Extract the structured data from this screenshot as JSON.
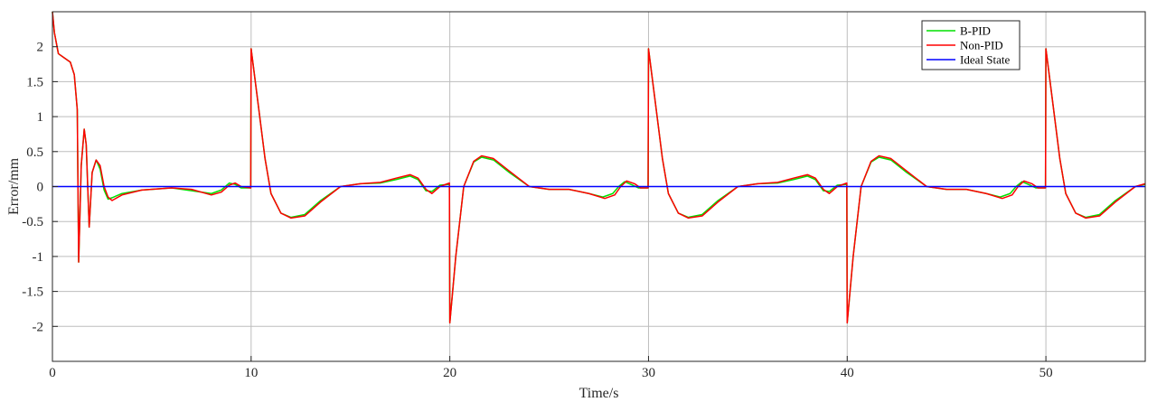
{
  "chart_data": {
    "type": "line",
    "title": "",
    "xlabel": "Time/s",
    "ylabel": "Error/mm",
    "xlim": [
      0,
      55
    ],
    "ylim": [
      -2.5,
      2.5
    ],
    "xticks": [
      0,
      10,
      20,
      30,
      40,
      50
    ],
    "yticks": [
      2,
      1.5,
      1,
      0.5,
      0,
      -0.5,
      -1,
      -1.5,
      -2
    ],
    "ytick_labels": [
      "2",
      "1.5",
      "1",
      "0.5",
      "0",
      "-0.5",
      "-1",
      "-1.5",
      "-2"
    ],
    "grid": true,
    "legend_position": "top-right",
    "series": [
      {
        "name": "B-PID",
        "color": "#00e000",
        "points": [
          [
            0,
            2.5
          ],
          [
            0.1,
            2.2
          ],
          [
            0.3,
            1.9
          ],
          [
            0.6,
            1.84
          ],
          [
            0.9,
            1.78
          ],
          [
            1.1,
            1.6
          ],
          [
            1.25,
            1.1
          ],
          [
            1.32,
            -1.08
          ],
          [
            1.45,
            0.3
          ],
          [
            1.6,
            0.82
          ],
          [
            1.7,
            0.6
          ],
          [
            1.85,
            -0.58
          ],
          [
            2.0,
            0.2
          ],
          [
            2.2,
            0.38
          ],
          [
            2.4,
            0.25
          ],
          [
            2.6,
            -0.05
          ],
          [
            2.8,
            -0.18
          ],
          [
            3.0,
            -0.16
          ],
          [
            3.5,
            -0.1
          ],
          [
            4.5,
            -0.05
          ],
          [
            6.0,
            -0.02
          ],
          [
            7.0,
            -0.06
          ],
          [
            8.0,
            -0.1
          ],
          [
            8.5,
            -0.05
          ],
          [
            8.9,
            0.05
          ],
          [
            9.2,
            0.03
          ],
          [
            9.5,
            -0.02
          ],
          [
            9.98,
            -0.02
          ],
          [
            10.0,
            1.97
          ],
          [
            10.3,
            1.3
          ],
          [
            10.7,
            0.4
          ],
          [
            11.0,
            -0.1
          ],
          [
            11.5,
            -0.38
          ],
          [
            12.0,
            -0.44
          ],
          [
            12.7,
            -0.4
          ],
          [
            13.5,
            -0.2
          ],
          [
            14.5,
            0.0
          ],
          [
            15.5,
            0.04
          ],
          [
            16.5,
            0.05
          ],
          [
            17.3,
            0.1
          ],
          [
            18.0,
            0.15
          ],
          [
            18.4,
            0.1
          ],
          [
            18.8,
            -0.06
          ],
          [
            19.1,
            -0.07
          ],
          [
            19.5,
            0.02
          ],
          [
            19.98,
            0.03
          ],
          [
            20.0,
            -1.95
          ],
          [
            20.3,
            -1.0
          ],
          [
            20.7,
            0.0
          ],
          [
            21.2,
            0.35
          ],
          [
            21.6,
            0.42
          ],
          [
            22.2,
            0.38
          ],
          [
            23.0,
            0.2
          ],
          [
            24.0,
            0.0
          ],
          [
            25.0,
            -0.04
          ],
          [
            26.0,
            -0.04
          ],
          [
            27.0,
            -0.1
          ],
          [
            27.7,
            -0.15
          ],
          [
            28.2,
            -0.1
          ],
          [
            28.5,
            0.0
          ],
          [
            28.8,
            0.07
          ],
          [
            29.2,
            0.02
          ],
          [
            29.5,
            -0.02
          ],
          [
            29.98,
            -0.02
          ],
          [
            30.0,
            1.97
          ],
          [
            30.3,
            1.3
          ],
          [
            30.7,
            0.4
          ],
          [
            31.0,
            -0.1
          ],
          [
            31.5,
            -0.38
          ],
          [
            32.0,
            -0.44
          ],
          [
            32.7,
            -0.4
          ],
          [
            33.5,
            -0.2
          ],
          [
            34.5,
            0.0
          ],
          [
            35.5,
            0.04
          ],
          [
            36.5,
            0.05
          ],
          [
            37.3,
            0.1
          ],
          [
            38.0,
            0.15
          ],
          [
            38.4,
            0.1
          ],
          [
            38.8,
            -0.06
          ],
          [
            39.1,
            -0.07
          ],
          [
            39.5,
            0.02
          ],
          [
            39.98,
            0.03
          ],
          [
            40.0,
            -1.95
          ],
          [
            40.3,
            -1.0
          ],
          [
            40.7,
            0.0
          ],
          [
            41.2,
            0.35
          ],
          [
            41.6,
            0.42
          ],
          [
            42.2,
            0.38
          ],
          [
            43.0,
            0.2
          ],
          [
            44.0,
            0.0
          ],
          [
            45.0,
            -0.04
          ],
          [
            46.0,
            -0.04
          ],
          [
            47.0,
            -0.1
          ],
          [
            47.7,
            -0.15
          ],
          [
            48.2,
            -0.1
          ],
          [
            48.5,
            0.0
          ],
          [
            48.8,
            0.07
          ],
          [
            49.2,
            0.02
          ],
          [
            49.5,
            -0.02
          ],
          [
            49.98,
            -0.02
          ],
          [
            50.0,
            1.97
          ],
          [
            50.3,
            1.3
          ],
          [
            50.7,
            0.4
          ],
          [
            51.0,
            -0.1
          ],
          [
            51.5,
            -0.38
          ],
          [
            52.0,
            -0.44
          ],
          [
            52.7,
            -0.4
          ],
          [
            53.5,
            -0.2
          ],
          [
            54.5,
            0.0
          ],
          [
            55.0,
            0.03
          ]
        ]
      },
      {
        "name": "Non-PID",
        "color": "#ff0000",
        "points": [
          [
            0,
            2.5
          ],
          [
            0.1,
            2.2
          ],
          [
            0.3,
            1.9
          ],
          [
            0.6,
            1.84
          ],
          [
            0.9,
            1.78
          ],
          [
            1.1,
            1.6
          ],
          [
            1.25,
            1.1
          ],
          [
            1.32,
            -1.08
          ],
          [
            1.45,
            0.3
          ],
          [
            1.6,
            0.82
          ],
          [
            1.7,
            0.6
          ],
          [
            1.85,
            -0.58
          ],
          [
            2.0,
            0.2
          ],
          [
            2.2,
            0.38
          ],
          [
            2.4,
            0.3
          ],
          [
            2.6,
            0.0
          ],
          [
            2.8,
            -0.15
          ],
          [
            3.0,
            -0.2
          ],
          [
            3.5,
            -0.12
          ],
          [
            4.5,
            -0.05
          ],
          [
            6.0,
            -0.02
          ],
          [
            7.0,
            -0.04
          ],
          [
            8.0,
            -0.12
          ],
          [
            8.5,
            -0.08
          ],
          [
            8.9,
            0.02
          ],
          [
            9.2,
            0.05
          ],
          [
            9.5,
            0.0
          ],
          [
            9.98,
            -0.02
          ],
          [
            10.0,
            1.97
          ],
          [
            10.3,
            1.3
          ],
          [
            10.7,
            0.4
          ],
          [
            11.0,
            -0.1
          ],
          [
            11.5,
            -0.38
          ],
          [
            12.0,
            -0.45
          ],
          [
            12.7,
            -0.42
          ],
          [
            13.5,
            -0.22
          ],
          [
            14.5,
            0.0
          ],
          [
            15.5,
            0.04
          ],
          [
            16.5,
            0.06
          ],
          [
            17.3,
            0.12
          ],
          [
            18.0,
            0.17
          ],
          [
            18.4,
            0.12
          ],
          [
            18.8,
            -0.04
          ],
          [
            19.1,
            -0.1
          ],
          [
            19.5,
            0.0
          ],
          [
            19.98,
            0.05
          ],
          [
            20.0,
            -1.95
          ],
          [
            20.3,
            -1.0
          ],
          [
            20.7,
            0.0
          ],
          [
            21.2,
            0.36
          ],
          [
            21.6,
            0.44
          ],
          [
            22.2,
            0.4
          ],
          [
            23.0,
            0.22
          ],
          [
            24.0,
            0.0
          ],
          [
            25.0,
            -0.04
          ],
          [
            26.0,
            -0.04
          ],
          [
            27.0,
            -0.1
          ],
          [
            27.8,
            -0.17
          ],
          [
            28.3,
            -0.12
          ],
          [
            28.6,
            0.0
          ],
          [
            28.9,
            0.08
          ],
          [
            29.3,
            0.04
          ],
          [
            29.6,
            -0.02
          ],
          [
            29.98,
            -0.02
          ],
          [
            30.0,
            1.97
          ],
          [
            30.3,
            1.3
          ],
          [
            30.7,
            0.4
          ],
          [
            31.0,
            -0.1
          ],
          [
            31.5,
            -0.38
          ],
          [
            32.0,
            -0.45
          ],
          [
            32.7,
            -0.42
          ],
          [
            33.5,
            -0.22
          ],
          [
            34.5,
            0.0
          ],
          [
            35.5,
            0.04
          ],
          [
            36.5,
            0.06
          ],
          [
            37.3,
            0.12
          ],
          [
            38.0,
            0.17
          ],
          [
            38.4,
            0.12
          ],
          [
            38.8,
            -0.04
          ],
          [
            39.1,
            -0.1
          ],
          [
            39.5,
            0.0
          ],
          [
            39.98,
            0.05
          ],
          [
            40.0,
            -1.95
          ],
          [
            40.3,
            -1.0
          ],
          [
            40.7,
            0.0
          ],
          [
            41.2,
            0.36
          ],
          [
            41.6,
            0.44
          ],
          [
            42.2,
            0.4
          ],
          [
            43.0,
            0.22
          ],
          [
            44.0,
            0.0
          ],
          [
            45.0,
            -0.04
          ],
          [
            46.0,
            -0.04
          ],
          [
            47.0,
            -0.1
          ],
          [
            47.8,
            -0.17
          ],
          [
            48.3,
            -0.12
          ],
          [
            48.6,
            0.0
          ],
          [
            48.9,
            0.08
          ],
          [
            49.3,
            0.04
          ],
          [
            49.6,
            -0.02
          ],
          [
            49.98,
            -0.02
          ],
          [
            50.0,
            1.97
          ],
          [
            50.3,
            1.3
          ],
          [
            50.7,
            0.4
          ],
          [
            51.0,
            -0.1
          ],
          [
            51.5,
            -0.38
          ],
          [
            52.0,
            -0.45
          ],
          [
            52.7,
            -0.42
          ],
          [
            53.5,
            -0.22
          ],
          [
            54.5,
            0.0
          ],
          [
            55.0,
            0.04
          ]
        ]
      },
      {
        "name": "Ideal State",
        "color": "#0000ff",
        "points": [
          [
            0,
            0
          ],
          [
            55,
            0
          ]
        ]
      }
    ]
  }
}
